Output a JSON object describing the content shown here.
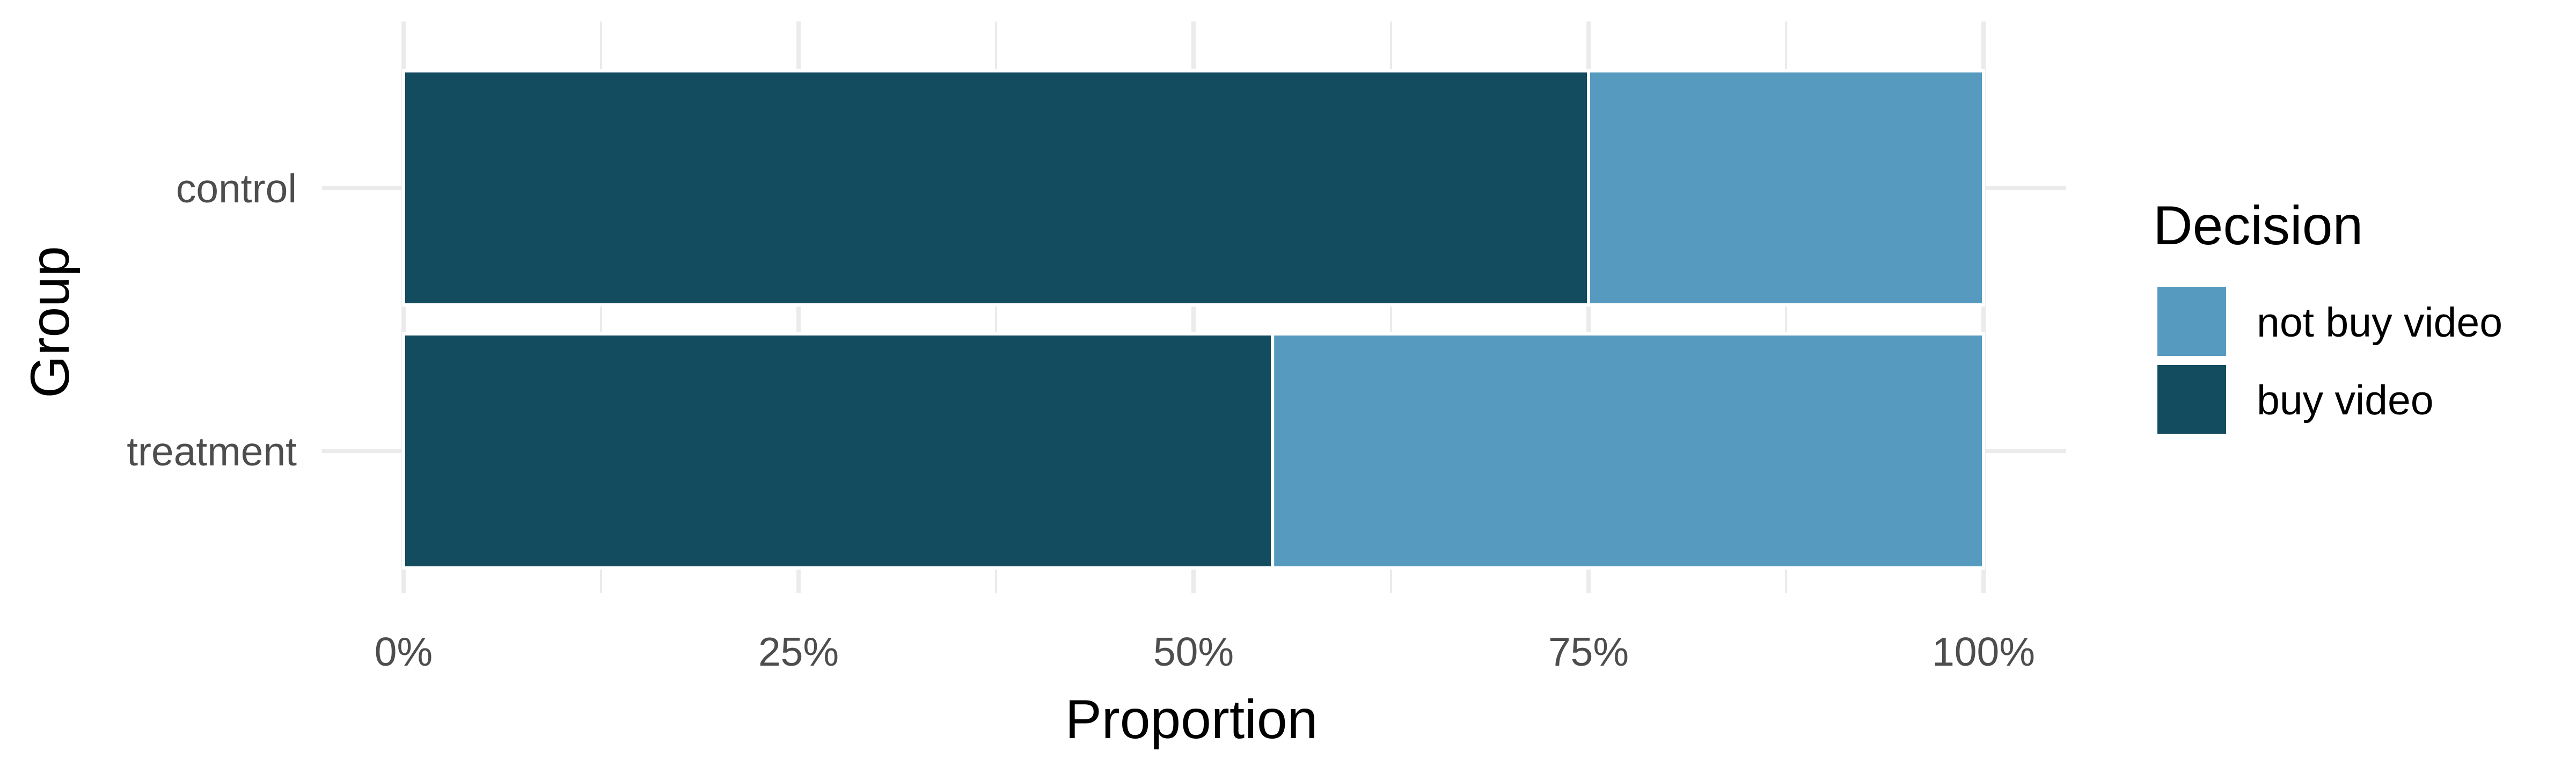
{
  "chart_data": {
    "type": "bar",
    "orientation": "horizontal",
    "stacked": true,
    "normalized": true,
    "categories": [
      "control",
      "treatment"
    ],
    "series": [
      {
        "name": "buy video",
        "values": [
          0.75,
          0.55
        ],
        "color": "#134b5f"
      },
      {
        "name": "not buy video",
        "values": [
          0.25,
          0.45
        ],
        "color": "#569bbf"
      }
    ],
    "xlabel": "Proportion",
    "ylabel": "Group",
    "xlim": [
      0,
      1
    ],
    "xticks": [
      0,
      0.25,
      0.5,
      0.75,
      1
    ],
    "xtick_labels": [
      "0%",
      "25%",
      "50%",
      "75%",
      "100%"
    ],
    "grid": true,
    "legend": {
      "title": "Decision",
      "position": "right",
      "entries": [
        {
          "label": "not buy video",
          "color": "#569bbf"
        },
        {
          "label": "buy video",
          "color": "#134b5f"
        }
      ]
    }
  }
}
